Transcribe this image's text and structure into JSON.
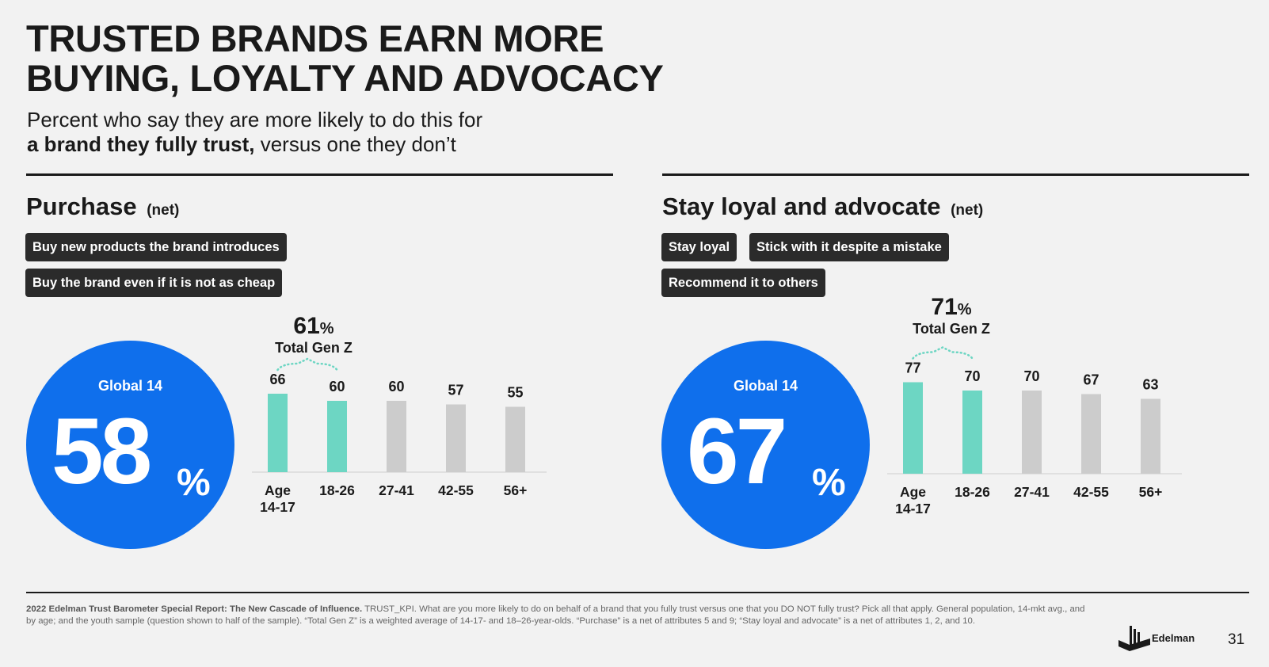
{
  "title_line1": "TRUSTED BRANDS EARN MORE",
  "title_line2": "BUYING, LOYALTY AND ADVOCACY",
  "subtitle_line1": "Percent who say they are more likely to do this for",
  "subtitle_bold": "a brand they fully trust,",
  "subtitle_rest": " versus one they don’t",
  "left": {
    "title": "Purchase",
    "title_suffix": "(net)",
    "pills": [
      "Buy new products the brand introduces",
      "Buy the brand even if it is not as cheap"
    ],
    "global_label": "Global 14",
    "global_value": "58",
    "percent_sign": "%",
    "genz_value": "61",
    "genz_label": "Total Gen Z"
  },
  "right": {
    "title": "Stay loyal and advocate",
    "title_suffix": "(net)",
    "pills": [
      "Stay loyal",
      "Stick with it despite a mistake",
      "Recommend it to others"
    ],
    "global_label": "Global 14",
    "global_value": "67",
    "percent_sign": "%",
    "genz_value": "71",
    "genz_label": "Total Gen Z"
  },
  "colors": {
    "teal": "#6dd6c3",
    "grey": "#cccccc",
    "blue": "#0f6fec",
    "dark": "#2b2b2b"
  },
  "chart_data": [
    {
      "type": "bar",
      "title": "Purchase (net)",
      "categories": [
        "Age 14-17",
        "18-26",
        "27-41",
        "42-55",
        "56+"
      ],
      "values": [
        66,
        60,
        60,
        57,
        55
      ],
      "highlighted": [
        true,
        true,
        false,
        false,
        false
      ],
      "ylim": [
        0,
        100
      ]
    },
    {
      "type": "bar",
      "title": "Stay loyal and advocate (net)",
      "categories": [
        "Age 14-17",
        "18-26",
        "27-41",
        "42-55",
        "56+"
      ],
      "values": [
        77,
        70,
        70,
        67,
        63
      ],
      "highlighted": [
        true,
        true,
        false,
        false,
        false
      ],
      "ylim": [
        0,
        100
      ]
    }
  ],
  "footnote_bold": "2022 Edelman Trust Barometer Special Report: The New Cascade of Influence.",
  "footnote_text": " TRUST_KPI. What are you more likely to do on behalf of a brand that you fully trust versus one that you DO NOT fully trust? Pick all that apply. General population, 14-mkt avg., and by age; and the youth sample (question shown to half of the sample). “Total Gen Z” is a weighted average of 14-17- and 18–26-year-olds. “Purchase” is a net of attributes 5 and 9; “Stay loyal and advocate” is a net of attributes 1, 2, and 10.",
  "logo_text": "Edelman",
  "page_number": "31"
}
